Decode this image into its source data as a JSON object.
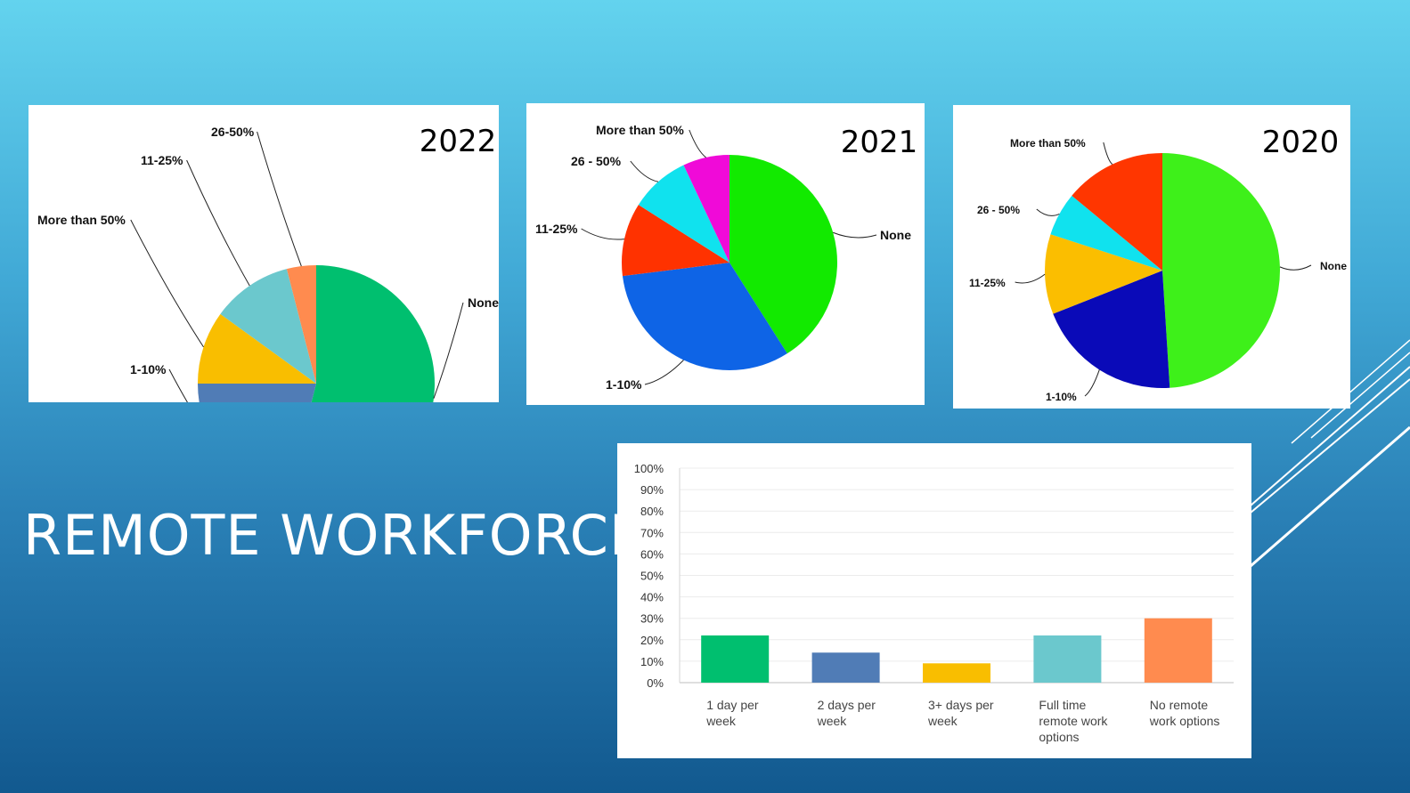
{
  "slide": {
    "title": "REMOTE WORKFORCE",
    "background_top": "#63d3ee",
    "background_bottom": "#12598f"
  },
  "chart_data": [
    {
      "type": "pie",
      "title": "2022",
      "start": "top, clockwise",
      "slices": [
        {
          "label": "None",
          "value": 54,
          "color": "#00bf6f"
        },
        {
          "label": "1-10%",
          "value": 21,
          "color": "#507cb6"
        },
        {
          "label": "More than 50%",
          "value": 10,
          "color": "#f9be00"
        },
        {
          "label": "11-25%",
          "value": 11,
          "color": "#6bc8cd"
        },
        {
          "label": "26-50%",
          "value": 4,
          "color": "#ff8b4f"
        }
      ]
    },
    {
      "type": "pie",
      "title": "2021",
      "start": "top, clockwise",
      "slices": [
        {
          "label": "None",
          "value": 41,
          "color": "#12ea00"
        },
        {
          "label": "1-10%",
          "value": 32,
          "color": "#0e64e6"
        },
        {
          "label": "11-25%",
          "value": 11,
          "color": "#ff3200"
        },
        {
          "label": "26 - 50%",
          "value": 9,
          "color": "#10e2ee"
        },
        {
          "label": "More than 50%",
          "value": 7,
          "color": "#f00ad8"
        }
      ]
    },
    {
      "type": "pie",
      "title": "2020",
      "start": "top, clockwise",
      "slices": [
        {
          "label": "None",
          "value": 49,
          "color": "#3ef01a"
        },
        {
          "label": "1-10%",
          "value": 20,
          "color": "#0a0ab8"
        },
        {
          "label": "11-25%",
          "value": 11,
          "color": "#fbbe00"
        },
        {
          "label": "26 - 50%",
          "value": 6,
          "color": "#10e2ee"
        },
        {
          "label": "More than 50%",
          "value": 14,
          "color": "#ff3600"
        }
      ]
    },
    {
      "type": "bar",
      "categories": [
        "1 day per week",
        "2 days per week",
        "3+ days per week",
        "Full time remote work options",
        "No remote work options"
      ],
      "category_lines": [
        [
          "1 day per",
          "week"
        ],
        [
          "2 days per",
          "week"
        ],
        [
          "3+ days per",
          "week"
        ],
        [
          "Full time",
          "remote work",
          "options"
        ],
        [
          "No remote",
          "work options"
        ]
      ],
      "values": [
        22,
        14,
        9,
        22,
        30
      ],
      "colors": [
        "#00bf6f",
        "#507cb6",
        "#f9be00",
        "#6bc8cd",
        "#ff8b4f"
      ],
      "yticks": [
        "0%",
        "10%",
        "20%",
        "30%",
        "40%",
        "50%",
        "60%",
        "70%",
        "80%",
        "90%",
        "100%"
      ],
      "ylim": [
        0,
        100
      ],
      "grid": true
    }
  ]
}
